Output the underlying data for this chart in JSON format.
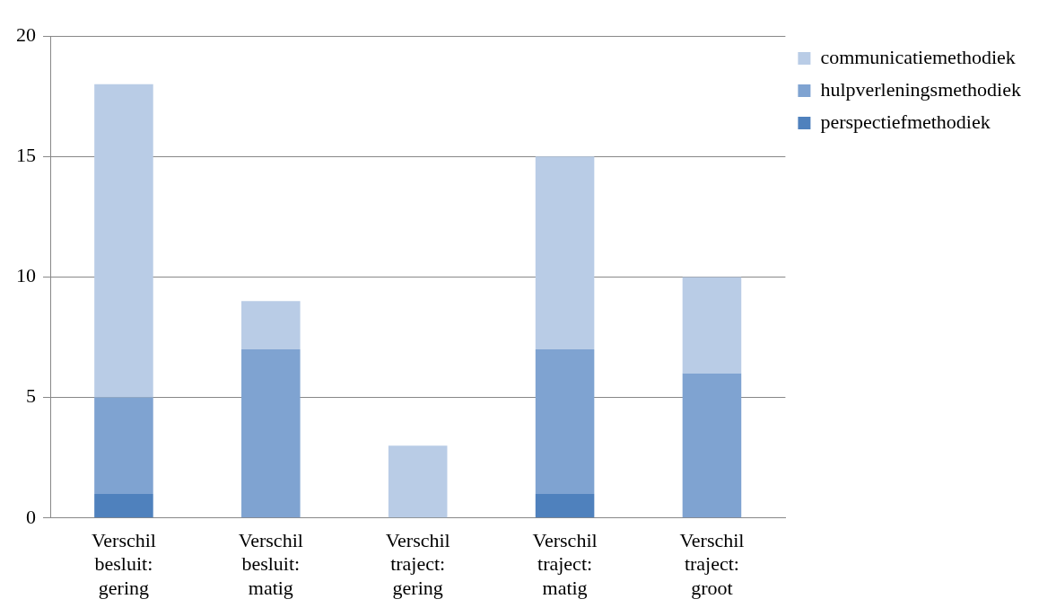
{
  "chart_data": {
    "type": "bar",
    "stacked": true,
    "categories": [
      "Verschil besluit: gering",
      "Verschil besluit: matig",
      "Verschil traject: gering",
      "Verschil traject: matig",
      "Verschil traject: groot"
    ],
    "series": [
      {
        "name": "perspectiefmethodiek",
        "color": "#4f81bd",
        "values": [
          1,
          0,
          0,
          1,
          0
        ]
      },
      {
        "name": "hulpverleningsmethodiek",
        "color": "#7fa3d1",
        "values": [
          4,
          7,
          0,
          6,
          6
        ]
      },
      {
        "name": "communicatiemethodiek",
        "color": "#b9cce6",
        "values": [
          13,
          2,
          3,
          8,
          4
        ]
      }
    ],
    "ylim": [
      0,
      20
    ],
    "yticks": [
      0,
      5,
      10,
      15,
      20
    ],
    "grid": "y",
    "legend": "top right"
  }
}
